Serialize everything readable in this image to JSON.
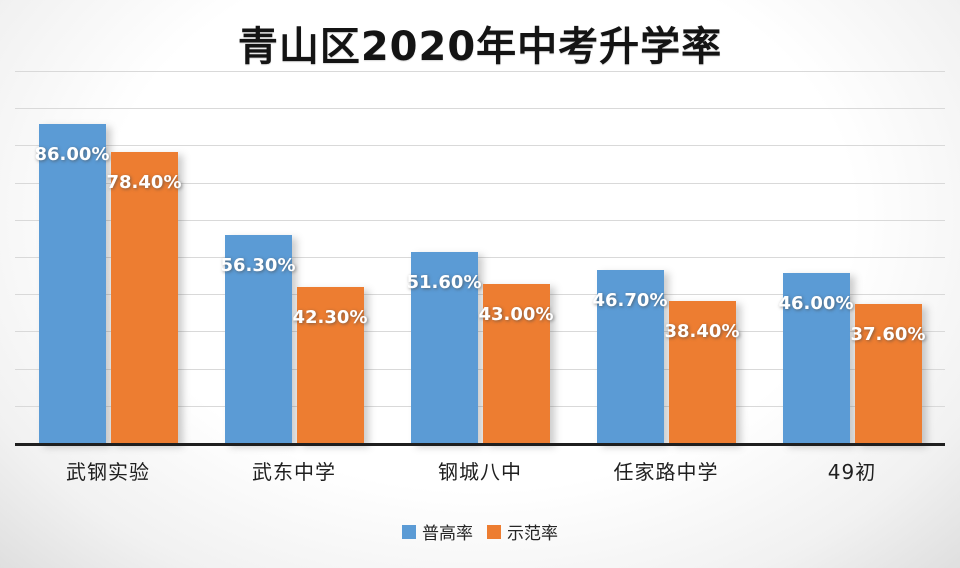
{
  "title": "青山区2020年中考升学率",
  "chart_data": {
    "type": "bar",
    "title": "青山区2020年中考升学率",
    "categories": [
      "武钢实验",
      "武东中学",
      "钢城八中",
      "任家路中学",
      "49初"
    ],
    "series": [
      {
        "name": "普高率",
        "color": "#5B9BD5",
        "values": [
          86.0,
          56.3,
          51.6,
          46.7,
          46.0
        ],
        "labels": [
          "86.00%",
          "56.30%",
          "51.60%",
          "46.70%",
          "46.00%"
        ]
      },
      {
        "name": "示范率",
        "color": "#ED7D31",
        "values": [
          78.4,
          42.3,
          43.0,
          38.4,
          37.6
        ],
        "labels": [
          "78.40%",
          "42.30%",
          "43.00%",
          "38.40%",
          "37.60%"
        ]
      }
    ],
    "xlabel": "",
    "ylabel": "",
    "ylim": [
      0,
      100
    ],
    "grid": true,
    "gridline_step": 10,
    "legend_position": "bottom"
  }
}
